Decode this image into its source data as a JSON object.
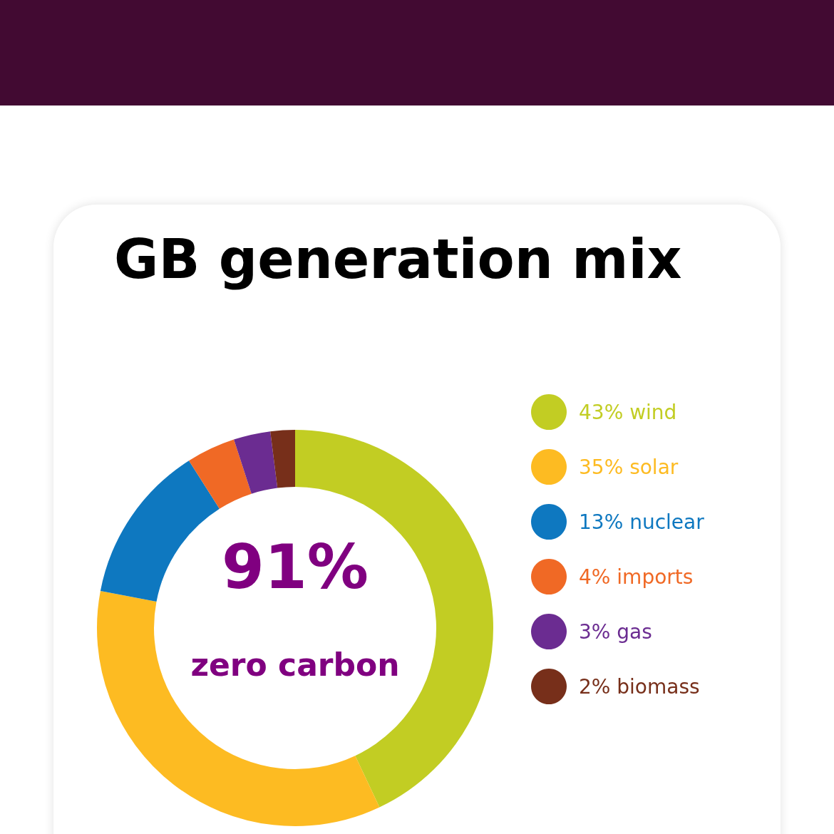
{
  "chart_data": {
    "type": "donut",
    "title": "GB generation mix",
    "categories": [
      "wind",
      "solar",
      "nuclear",
      "imports",
      "gas",
      "biomass"
    ],
    "values": [
      43,
      35,
      13,
      4,
      3,
      2
    ],
    "value_labels": [
      "43%",
      "35%",
      "13%",
      "4%",
      "3%",
      "2%"
    ],
    "colors": [
      "#c2cd23",
      "#fdbb22",
      "#0e78c0",
      "#f06925",
      "#6b2c91",
      "#772f1a"
    ],
    "legend": "right",
    "annotations": [
      "91%",
      "zero carbon"
    ]
  }
}
